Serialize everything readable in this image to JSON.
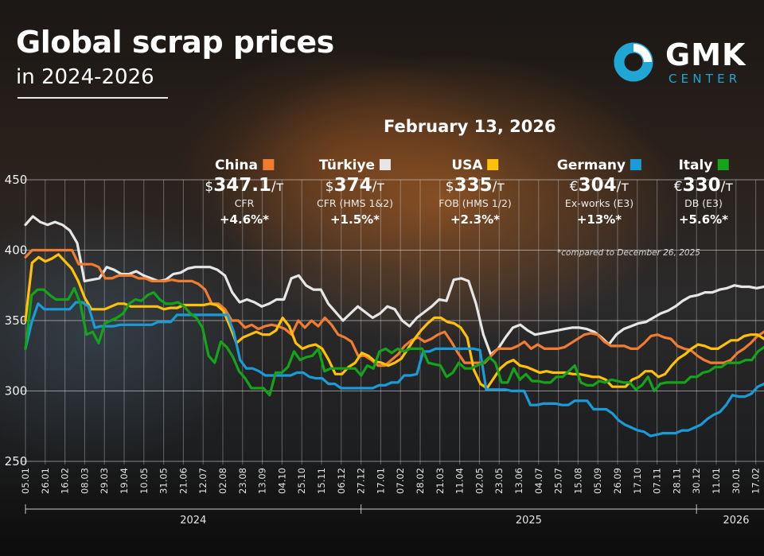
{
  "header": {
    "title": "Global scrap prices",
    "subtitle": "in 2024-2026",
    "date": "February 13, 2026"
  },
  "logo": {
    "primary": "GMK",
    "secondary": "CENTER",
    "ring_color": "#1fa6d4"
  },
  "cards": [
    {
      "name": "China",
      "color": "#f07c32",
      "currency": "$",
      "price": "347.1",
      "unit": "/т",
      "basis": "CFR",
      "change": "+4.6%*"
    },
    {
      "name": "Türkiye",
      "color": "#e6e6e6",
      "currency": "$",
      "price": "374",
      "unit": "/т",
      "basis": "CFR (HMS 1&2)",
      "change": "+1.5%*"
    },
    {
      "name": "USA",
      "color": "#ffc107",
      "currency": "$",
      "price": "335",
      "unit": "/т",
      "basis": "FOB (HMS 1/2)",
      "change": "+2.3%*"
    },
    {
      "name": "Germany",
      "color": "#1a9ad6",
      "currency": "€",
      "price": "304",
      "unit": "/т",
      "basis": "Ex-works (E3)",
      "change": "+13%*"
    },
    {
      "name": "Italy",
      "color": "#15a31a",
      "currency": "€",
      "price": "330",
      "unit": "/т",
      "basis": "DB (E3)",
      "change": "+5.6%*"
    }
  ],
  "footnote": "*compared to December 26, 2025",
  "chart_data": {
    "type": "line",
    "title": "Global scrap prices in 2024-2026",
    "xlabel": "",
    "ylabel": "",
    "ylim": [
      250,
      450
    ],
    "yticks": [
      250,
      300,
      350,
      400,
      450
    ],
    "ytick_labels": [
      "250",
      "300",
      "350",
      "400",
      "450"
    ],
    "grid": true,
    "legend": "top",
    "x_tick_labels": [
      "05.01",
      "26.01",
      "16.02",
      "08.03",
      "29.03",
      "19.04",
      "10.05",
      "31.05",
      "21.06",
      "12.07",
      "02.08",
      "23.08",
      "13.09",
      "04.10",
      "25.10",
      "15.11",
      "06.12",
      "27.12",
      "17.01",
      "07.02",
      "28.02",
      "21.03",
      "11.04",
      "02.05",
      "23.05",
      "13.06",
      "04.07",
      "25.07",
      "15.08",
      "05.09",
      "26.09",
      "17.10",
      "07.11",
      "28.11",
      "30.12",
      "11.01",
      "30.01",
      "17.02"
    ],
    "x_groups": [
      {
        "label": "2024",
        "from": "05.01",
        "to": "27.12"
      },
      {
        "label": "2025",
        "from": "27.12",
        "to": "30.12"
      },
      {
        "label": "2026",
        "from": "30.12",
        "to": "17.02"
      }
    ],
    "series": [
      {
        "name": "Türkiye",
        "color": "#e6e6e6",
        "values": [
          418,
          424,
          420,
          418,
          420,
          418,
          414,
          405,
          378,
          379,
          380,
          388,
          386,
          383,
          383,
          385,
          382,
          380,
          378,
          379,
          383,
          384,
          387,
          388,
          388,
          388,
          386,
          382,
          370,
          363,
          365,
          363,
          360,
          362,
          365,
          365,
          380,
          382,
          375,
          372,
          372,
          362,
          356,
          350,
          355,
          360,
          356,
          352,
          355,
          360,
          358,
          350,
          346,
          352,
          356,
          360,
          365,
          364,
          379,
          380,
          378,
          362,
          340,
          326,
          330,
          338,
          345,
          347,
          343,
          340,
          341,
          342,
          343,
          344,
          345,
          345,
          344,
          342,
          338,
          333,
          340,
          344,
          346,
          348,
          349,
          352,
          355,
          357,
          360,
          364,
          367,
          368,
          370,
          370,
          372,
          373,
          375,
          374,
          374,
          373,
          374
        ]
      },
      {
        "name": "China",
        "color": "#f07c32",
        "values": [
          395,
          400,
          400,
          400,
          400,
          400,
          400,
          400,
          390,
          390,
          390,
          388,
          380,
          380,
          382,
          382,
          382,
          380,
          380,
          378,
          378,
          378,
          379,
          378,
          378,
          378,
          376,
          372,
          362,
          362,
          358,
          350,
          350,
          345,
          347,
          344,
          346,
          347,
          346,
          344,
          340,
          350,
          345,
          350,
          346,
          352,
          347,
          340,
          338,
          335,
          325,
          325,
          322,
          318,
          318,
          322,
          326,
          332,
          336,
          338,
          335,
          337,
          340,
          342,
          335,
          327,
          320,
          320,
          320,
          320,
          325,
          330,
          330,
          330,
          332,
          335,
          330,
          333,
          330,
          330,
          330,
          331,
          334,
          337,
          340,
          341,
          340,
          335,
          332,
          332,
          332,
          330,
          330,
          334,
          339,
          340,
          338,
          337,
          332,
          330,
          329,
          325,
          322,
          320,
          320,
          320,
          322,
          327,
          330,
          334,
          339,
          342
        ]
      },
      {
        "name": "USA",
        "color": "#ffc107",
        "values": [
          350,
          391,
          395,
          392,
          394,
          397,
          392,
          387,
          378,
          366,
          358,
          358,
          358,
          360,
          362,
          362,
          360,
          360,
          360,
          360,
          360,
          358,
          359,
          359,
          361,
          361,
          361,
          361,
          362,
          361,
          357,
          346,
          334,
          338,
          340,
          342,
          340,
          340,
          343,
          352,
          346,
          334,
          330,
          332,
          333,
          330,
          322,
          312,
          312,
          317,
          320,
          327,
          325,
          321,
          320,
          318,
          320,
          323,
          330,
          337,
          343,
          348,
          352,
          352,
          349,
          348,
          345,
          338,
          315,
          305,
          302,
          309,
          316,
          320,
          322,
          318,
          317,
          315,
          313,
          314,
          313,
          313,
          313,
          312,
          312,
          311,
          310,
          310,
          308,
          303,
          303,
          303,
          308,
          310,
          314,
          314,
          310,
          312,
          318,
          323,
          326,
          330,
          333,
          332,
          330,
          330,
          333,
          336,
          336,
          339,
          340,
          340,
          337
        ]
      },
      {
        "name": "Germany",
        "color": "#1a9ad6",
        "values": [
          330,
          349,
          362,
          358,
          358,
          358,
          358,
          358,
          363,
          363,
          360,
          345,
          346,
          346,
          346,
          347,
          347,
          347,
          347,
          347,
          347,
          349,
          349,
          349,
          354,
          354,
          354,
          354,
          354,
          354,
          354,
          354,
          354,
          342,
          322,
          316,
          316,
          314,
          311,
          311,
          311,
          311,
          311,
          313,
          313,
          310,
          309,
          309,
          305,
          305,
          302,
          302,
          302,
          302,
          302,
          302,
          304,
          304,
          306,
          306,
          311,
          311,
          312,
          328,
          328,
          330,
          330,
          330,
          330,
          330,
          330,
          330,
          329,
          301,
          301,
          301,
          301,
          300,
          300,
          300,
          290,
          290,
          291,
          291,
          291,
          290,
          290,
          293,
          293,
          293,
          287,
          287,
          287,
          284,
          279,
          276,
          274,
          272,
          271,
          268,
          269,
          270,
          270,
          270,
          272,
          272,
          274,
          276,
          280,
          283,
          285,
          290,
          297,
          296,
          296,
          298,
          303,
          305
        ]
      },
      {
        "name": "Italy",
        "color": "#15a31a",
        "values": [
          330,
          368,
          372,
          372,
          368,
          365,
          365,
          365,
          373,
          362,
          340,
          342,
          334,
          348,
          350,
          352,
          355,
          362,
          365,
          364,
          368,
          370,
          365,
          362,
          362,
          363,
          360,
          355,
          352,
          345,
          325,
          320,
          335,
          331,
          324,
          314,
          309,
          302,
          302,
          302,
          297,
          313,
          313,
          317,
          328,
          322,
          324,
          325,
          330,
          314,
          316,
          316,
          316,
          316,
          316,
          311,
          318,
          316,
          328,
          330,
          327,
          330,
          328,
          330,
          330,
          330,
          320,
          319,
          318,
          310,
          313,
          320,
          316,
          316,
          318,
          320,
          324,
          320,
          306,
          306,
          316,
          308,
          312,
          307,
          307,
          306,
          306,
          310,
          310,
          314,
          318,
          306,
          304,
          304,
          307,
          306,
          308,
          307,
          306,
          306,
          301,
          304,
          310,
          300,
          305,
          306,
          306,
          306,
          306,
          310,
          310,
          313,
          314,
          317,
          317,
          320,
          320,
          320,
          322,
          322,
          328,
          331
        ]
      }
    ]
  }
}
